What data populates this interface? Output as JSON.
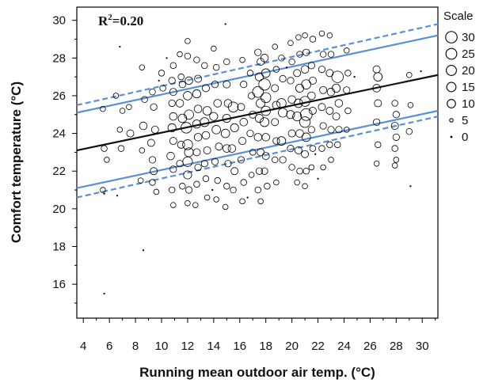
{
  "chart_data": {
    "type": "scatter",
    "title": "",
    "xlabel": "Running mean outdoor air temp. (°C)",
    "ylabel": "Comfort temperature (°C)",
    "xlim": [
      3.5,
      31.2
    ],
    "ylim": [
      14.2,
      30.7
    ],
    "xticks": [
      4,
      6,
      8,
      10,
      12,
      14,
      16,
      18,
      20,
      22,
      24,
      26,
      28,
      30
    ],
    "yticks": [
      16,
      18,
      20,
      22,
      24,
      26,
      28,
      30
    ],
    "annotation": {
      "base": "R",
      "sup": "2",
      "rest": "=0.20"
    },
    "grid": false,
    "legend": {
      "title": "Scale",
      "position": "right",
      "entries": [
        {
          "label": "30",
          "size": 30
        },
        {
          "label": "25",
          "size": 25
        },
        {
          "label": "20",
          "size": 20
        },
        {
          "label": "15",
          "size": 15
        },
        {
          "label": "10",
          "size": 10
        },
        {
          "label": "5",
          "size": 5
        },
        {
          "label": "0",
          "size": 0
        }
      ]
    },
    "lines": [
      {
        "role": "regression",
        "color": "#111111",
        "dash": false,
        "x": [
          3.5,
          31.2
        ],
        "y": [
          23.1,
          27.1
        ]
      },
      {
        "role": "upper-band",
        "color": "#5b8fd6",
        "dash": false,
        "x": [
          3.5,
          31.2
        ],
        "y": [
          25.1,
          29.2
        ]
      },
      {
        "role": "lower-band",
        "color": "#5b8fd6",
        "dash": false,
        "x": [
          3.5,
          31.2
        ],
        "y": [
          21.1,
          25.2
        ]
      },
      {
        "role": "upper-outer",
        "color": "#5b8fd6",
        "dash": true,
        "x": [
          3.5,
          31.2
        ],
        "y": [
          25.5,
          29.8
        ]
      },
      {
        "role": "lower-outer",
        "color": "#5b8fd6",
        "dash": true,
        "x": [
          3.5,
          31.2
        ],
        "y": [
          20.6,
          24.9
        ]
      }
    ],
    "points": [
      {
        "x": 5.5,
        "y": 25.3,
        "s": 2
      },
      {
        "x": 5.6,
        "y": 23.2,
        "s": 3
      },
      {
        "x": 5.8,
        "y": 22.6,
        "s": 2
      },
      {
        "x": 5.5,
        "y": 21.0,
        "s": 2
      },
      {
        "x": 5.6,
        "y": 20.8,
        "s": 0
      },
      {
        "x": 5.6,
        "y": 15.5,
        "s": 0
      },
      {
        "x": 6.8,
        "y": 28.6,
        "s": 0
      },
      {
        "x": 6.5,
        "y": 26.0,
        "s": 2
      },
      {
        "x": 7.0,
        "y": 25.2,
        "s": 2
      },
      {
        "x": 6.8,
        "y": 24.2,
        "s": 2
      },
      {
        "x": 6.9,
        "y": 23.2,
        "s": 3
      },
      {
        "x": 6.6,
        "y": 20.7,
        "s": 0
      },
      {
        "x": 7.5,
        "y": 25.4,
        "s": 2
      },
      {
        "x": 7.6,
        "y": 24.0,
        "s": 5
      },
      {
        "x": 8.5,
        "y": 27.5,
        "s": 2
      },
      {
        "x": 8.7,
        "y": 25.8,
        "s": 3
      },
      {
        "x": 8.6,
        "y": 24.4,
        "s": 6
      },
      {
        "x": 8.5,
        "y": 23.1,
        "s": 2
      },
      {
        "x": 8.4,
        "y": 21.5,
        "s": 2
      },
      {
        "x": 8.6,
        "y": 17.8,
        "s": 0
      },
      {
        "x": 9.3,
        "y": 26.2,
        "s": 3
      },
      {
        "x": 9.4,
        "y": 25.4,
        "s": 4
      },
      {
        "x": 9.5,
        "y": 24.2,
        "s": 5
      },
      {
        "x": 9.2,
        "y": 23.5,
        "s": 5
      },
      {
        "x": 9.3,
        "y": 22.6,
        "s": 4
      },
      {
        "x": 9.4,
        "y": 22.0,
        "s": 5
      },
      {
        "x": 9.3,
        "y": 21.4,
        "s": 3
      },
      {
        "x": 9.6,
        "y": 20.9,
        "s": 2
      },
      {
        "x": 10.0,
        "y": 27.2,
        "s": 3
      },
      {
        "x": 10.1,
        "y": 26.4,
        "s": 3
      },
      {
        "x": 10.9,
        "y": 27.6,
        "s": 3
      },
      {
        "x": 10.8,
        "y": 26.8,
        "s": 4
      },
      {
        "x": 10.9,
        "y": 26.2,
        "s": 5
      },
      {
        "x": 10.8,
        "y": 25.6,
        "s": 4
      },
      {
        "x": 10.9,
        "y": 24.9,
        "s": 6
      },
      {
        "x": 10.8,
        "y": 24.3,
        "s": 7
      },
      {
        "x": 10.9,
        "y": 23.6,
        "s": 5
      },
      {
        "x": 10.7,
        "y": 22.8,
        "s": 6
      },
      {
        "x": 10.9,
        "y": 22.1,
        "s": 4
      },
      {
        "x": 10.8,
        "y": 21.0,
        "s": 3
      },
      {
        "x": 10.9,
        "y": 20.2,
        "s": 2
      },
      {
        "x": 11.4,
        "y": 28.2,
        "s": 2
      },
      {
        "x": 11.5,
        "y": 27.0,
        "s": 3
      },
      {
        "x": 11.6,
        "y": 26.6,
        "s": 4
      },
      {
        "x": 11.4,
        "y": 25.6,
        "s": 6
      },
      {
        "x": 11.6,
        "y": 24.8,
        "s": 8
      },
      {
        "x": 11.5,
        "y": 23.4,
        "s": 5
      },
      {
        "x": 11.4,
        "y": 22.4,
        "s": 4
      },
      {
        "x": 11.6,
        "y": 21.2,
        "s": 3
      },
      {
        "x": 12.0,
        "y": 28.9,
        "s": 2
      },
      {
        "x": 12.0,
        "y": 28.1,
        "s": 3
      },
      {
        "x": 12.1,
        "y": 26.8,
        "s": 6
      },
      {
        "x": 12.0,
        "y": 26.0,
        "s": 8
      },
      {
        "x": 12.1,
        "y": 25.0,
        "s": 10
      },
      {
        "x": 11.9,
        "y": 24.3,
        "s": 14
      },
      {
        "x": 12.0,
        "y": 23.4,
        "s": 12
      },
      {
        "x": 12.1,
        "y": 23.0,
        "s": 9
      },
      {
        "x": 12.0,
        "y": 22.5,
        "s": 11
      },
      {
        "x": 12.0,
        "y": 21.8,
        "s": 7
      },
      {
        "x": 12.1,
        "y": 21.0,
        "s": 4
      },
      {
        "x": 12.0,
        "y": 20.3,
        "s": 2
      },
      {
        "x": 12.7,
        "y": 27.9,
        "s": 3
      },
      {
        "x": 12.8,
        "y": 26.9,
        "s": 5
      },
      {
        "x": 12.7,
        "y": 26.1,
        "s": 7
      },
      {
        "x": 12.8,
        "y": 25.3,
        "s": 6
      },
      {
        "x": 12.7,
        "y": 24.5,
        "s": 7
      },
      {
        "x": 12.8,
        "y": 23.8,
        "s": 6
      },
      {
        "x": 12.7,
        "y": 23.0,
        "s": 5
      },
      {
        "x": 12.8,
        "y": 22.2,
        "s": 4
      },
      {
        "x": 12.7,
        "y": 21.3,
        "s": 3
      },
      {
        "x": 12.6,
        "y": 20.2,
        "s": 2
      },
      {
        "x": 13.3,
        "y": 27.6,
        "s": 3
      },
      {
        "x": 13.4,
        "y": 26.4,
        "s": 5
      },
      {
        "x": 13.5,
        "y": 25.2,
        "s": 8
      },
      {
        "x": 13.3,
        "y": 24.6,
        "s": 9
      },
      {
        "x": 13.4,
        "y": 23.9,
        "s": 6
      },
      {
        "x": 13.5,
        "y": 23.1,
        "s": 5
      },
      {
        "x": 13.3,
        "y": 22.4,
        "s": 4
      },
      {
        "x": 13.4,
        "y": 21.6,
        "s": 3
      },
      {
        "x": 13.5,
        "y": 20.6,
        "s": 2
      },
      {
        "x": 14.0,
        "y": 28.5,
        "s": 2
      },
      {
        "x": 14.2,
        "y": 27.5,
        "s": 3
      },
      {
        "x": 14.1,
        "y": 26.6,
        "s": 4
      },
      {
        "x": 14.3,
        "y": 25.6,
        "s": 6
      },
      {
        "x": 14.0,
        "y": 24.9,
        "s": 7
      },
      {
        "x": 14.2,
        "y": 24.2,
        "s": 8
      },
      {
        "x": 14.4,
        "y": 23.3,
        "s": 5
      },
      {
        "x": 14.1,
        "y": 22.5,
        "s": 4
      },
      {
        "x": 14.3,
        "y": 21.5,
        "s": 3
      },
      {
        "x": 14.2,
        "y": 20.5,
        "s": 2
      },
      {
        "x": 14.9,
        "y": 29.8,
        "s": 0
      },
      {
        "x": 15.0,
        "y": 27.8,
        "s": 3
      },
      {
        "x": 15.0,
        "y": 26.6,
        "s": 5
      },
      {
        "x": 15.1,
        "y": 25.6,
        "s": 6
      },
      {
        "x": 15.0,
        "y": 24.8,
        "s": 7
      },
      {
        "x": 14.9,
        "y": 24.0,
        "s": 8
      },
      {
        "x": 15.0,
        "y": 23.2,
        "s": 6
      },
      {
        "x": 15.1,
        "y": 22.4,
        "s": 4
      },
      {
        "x": 15.0,
        "y": 21.2,
        "s": 3
      },
      {
        "x": 14.9,
        "y": 20.1,
        "s": 2
      },
      {
        "x": 15.5,
        "y": 25.4,
        "s": 12
      },
      {
        "x": 15.6,
        "y": 24.3,
        "s": 7
      },
      {
        "x": 15.4,
        "y": 23.2,
        "s": 6
      },
      {
        "x": 15.6,
        "y": 22.0,
        "s": 5
      },
      {
        "x": 15.5,
        "y": 21.0,
        "s": 3
      },
      {
        "x": 16.2,
        "y": 27.9,
        "s": 2
      },
      {
        "x": 16.3,
        "y": 26.6,
        "s": 4
      },
      {
        "x": 16.1,
        "y": 25.4,
        "s": 5
      },
      {
        "x": 16.3,
        "y": 24.6,
        "s": 6
      },
      {
        "x": 16.2,
        "y": 23.6,
        "s": 5
      },
      {
        "x": 16.1,
        "y": 22.6,
        "s": 4
      },
      {
        "x": 16.3,
        "y": 21.4,
        "s": 3
      },
      {
        "x": 16.2,
        "y": 20.4,
        "s": 2
      },
      {
        "x": 16.8,
        "y": 27.2,
        "s": 3
      },
      {
        "x": 16.9,
        "y": 26.0,
        "s": 4
      },
      {
        "x": 17.0,
        "y": 25.0,
        "s": 5
      },
      {
        "x": 16.8,
        "y": 24.0,
        "s": 4
      },
      {
        "x": 17.0,
        "y": 23.0,
        "s": 3
      },
      {
        "x": 16.9,
        "y": 21.8,
        "s": 2
      },
      {
        "x": 17.4,
        "y": 28.3,
        "s": 4
      },
      {
        "x": 17.6,
        "y": 27.8,
        "s": 5
      },
      {
        "x": 17.5,
        "y": 27.0,
        "s": 7
      },
      {
        "x": 17.4,
        "y": 26.2,
        "s": 15
      },
      {
        "x": 17.6,
        "y": 25.6,
        "s": 9
      },
      {
        "x": 17.5,
        "y": 24.8,
        "s": 7
      },
      {
        "x": 17.4,
        "y": 23.8,
        "s": 6
      },
      {
        "x": 17.6,
        "y": 23.0,
        "s": 5
      },
      {
        "x": 17.5,
        "y": 22.0,
        "s": 4
      },
      {
        "x": 17.4,
        "y": 21.0,
        "s": 3
      },
      {
        "x": 17.6,
        "y": 20.4,
        "s": 2
      },
      {
        "x": 17.9,
        "y": 28.0,
        "s": 6
      },
      {
        "x": 18.0,
        "y": 27.2,
        "s": 8
      },
      {
        "x": 17.9,
        "y": 26.6,
        "s": 17
      },
      {
        "x": 18.0,
        "y": 25.9,
        "s": 12
      },
      {
        "x": 18.0,
        "y": 25.2,
        "s": 10
      },
      {
        "x": 17.9,
        "y": 24.6,
        "s": 9
      },
      {
        "x": 18.0,
        "y": 23.8,
        "s": 6
      },
      {
        "x": 18.0,
        "y": 22.8,
        "s": 5
      },
      {
        "x": 17.9,
        "y": 22.0,
        "s": 4
      },
      {
        "x": 18.1,
        "y": 21.2,
        "s": 3
      },
      {
        "x": 18.7,
        "y": 28.6,
        "s": 2
      },
      {
        "x": 18.8,
        "y": 27.4,
        "s": 3
      },
      {
        "x": 18.7,
        "y": 26.4,
        "s": 5
      },
      {
        "x": 18.8,
        "y": 25.5,
        "s": 6
      },
      {
        "x": 18.7,
        "y": 24.6,
        "s": 5
      },
      {
        "x": 18.8,
        "y": 23.6,
        "s": 4
      },
      {
        "x": 18.7,
        "y": 22.6,
        "s": 3
      },
      {
        "x": 18.8,
        "y": 21.4,
        "s": 2
      },
      {
        "x": 19.2,
        "y": 28.0,
        "s": 3
      },
      {
        "x": 19.3,
        "y": 26.9,
        "s": 4
      },
      {
        "x": 19.2,
        "y": 25.6,
        "s": 10
      },
      {
        "x": 19.3,
        "y": 25.1,
        "s": 9
      },
      {
        "x": 19.2,
        "y": 23.6,
        "s": 8
      },
      {
        "x": 19.3,
        "y": 22.6,
        "s": 4
      },
      {
        "x": 19.9,
        "y": 28.8,
        "s": 2
      },
      {
        "x": 20.0,
        "y": 27.8,
        "s": 3
      },
      {
        "x": 19.9,
        "y": 26.8,
        "s": 4
      },
      {
        "x": 20.0,
        "y": 25.8,
        "s": 6
      },
      {
        "x": 19.9,
        "y": 25.0,
        "s": 7
      },
      {
        "x": 20.0,
        "y": 24.0,
        "s": 5
      },
      {
        "x": 19.9,
        "y": 23.2,
        "s": 4
      },
      {
        "x": 20.0,
        "y": 22.2,
        "s": 3
      },
      {
        "x": 20.5,
        "y": 29.1,
        "s": 2
      },
      {
        "x": 20.6,
        "y": 28.2,
        "s": 3
      },
      {
        "x": 20.4,
        "y": 27.2,
        "s": 5
      },
      {
        "x": 20.6,
        "y": 26.4,
        "s": 7
      },
      {
        "x": 20.5,
        "y": 25.6,
        "s": 8
      },
      {
        "x": 20.4,
        "y": 24.9,
        "s": 9
      },
      {
        "x": 20.6,
        "y": 24.0,
        "s": 6
      },
      {
        "x": 20.5,
        "y": 23.1,
        "s": 5
      },
      {
        "x": 20.6,
        "y": 22.0,
        "s": 3
      },
      {
        "x": 20.4,
        "y": 21.4,
        "s": 2
      },
      {
        "x": 21.0,
        "y": 29.2,
        "s": 2
      },
      {
        "x": 21.1,
        "y": 28.3,
        "s": 4
      },
      {
        "x": 21.0,
        "y": 27.4,
        "s": 6
      },
      {
        "x": 21.1,
        "y": 26.6,
        "s": 10
      },
      {
        "x": 21.0,
        "y": 25.7,
        "s": 12
      },
      {
        "x": 21.1,
        "y": 25.0,
        "s": 18
      },
      {
        "x": 21.0,
        "y": 24.6,
        "s": 14
      },
      {
        "x": 21.1,
        "y": 23.8,
        "s": 8
      },
      {
        "x": 21.0,
        "y": 22.9,
        "s": 5
      },
      {
        "x": 21.1,
        "y": 22.0,
        "s": 3
      },
      {
        "x": 21.0,
        "y": 21.2,
        "s": 2
      },
      {
        "x": 21.6,
        "y": 29.0,
        "s": 3
      },
      {
        "x": 21.5,
        "y": 27.6,
        "s": 4
      },
      {
        "x": 21.6,
        "y": 26.8,
        "s": 5
      },
      {
        "x": 21.5,
        "y": 26.0,
        "s": 6
      },
      {
        "x": 21.6,
        "y": 25.2,
        "s": 5
      },
      {
        "x": 21.5,
        "y": 24.2,
        "s": 4
      },
      {
        "x": 21.6,
        "y": 23.2,
        "s": 3
      },
      {
        "x": 21.5,
        "y": 22.2,
        "s": 2
      },
      {
        "x": 22.3,
        "y": 29.3,
        "s": 2
      },
      {
        "x": 22.4,
        "y": 28.2,
        "s": 3
      },
      {
        "x": 22.3,
        "y": 27.4,
        "s": 4
      },
      {
        "x": 22.4,
        "y": 26.3,
        "s": 5
      },
      {
        "x": 22.3,
        "y": 25.4,
        "s": 5
      },
      {
        "x": 22.4,
        "y": 24.4,
        "s": 4
      },
      {
        "x": 22.3,
        "y": 23.2,
        "s": 3
      },
      {
        "x": 22.4,
        "y": 22.2,
        "s": 2
      },
      {
        "x": 22.9,
        "y": 29.2,
        "s": 2
      },
      {
        "x": 23.0,
        "y": 28.2,
        "s": 3
      },
      {
        "x": 22.9,
        "y": 27.2,
        "s": 5
      },
      {
        "x": 23.0,
        "y": 26.2,
        "s": 6
      },
      {
        "x": 22.9,
        "y": 25.2,
        "s": 5
      },
      {
        "x": 23.0,
        "y": 24.2,
        "s": 4
      },
      {
        "x": 22.9,
        "y": 23.4,
        "s": 3
      },
      {
        "x": 23.0,
        "y": 22.6,
        "s": 2
      },
      {
        "x": 23.5,
        "y": 27.0,
        "s": 17
      },
      {
        "x": 23.4,
        "y": 26.4,
        "s": 7
      },
      {
        "x": 23.6,
        "y": 25.6,
        "s": 6
      },
      {
        "x": 23.4,
        "y": 24.9,
        "s": 5
      },
      {
        "x": 23.6,
        "y": 24.2,
        "s": 4
      },
      {
        "x": 23.5,
        "y": 23.4,
        "s": 3
      },
      {
        "x": 24.2,
        "y": 28.4,
        "s": 2
      },
      {
        "x": 24.3,
        "y": 27.2,
        "s": 3
      },
      {
        "x": 24.2,
        "y": 26.3,
        "s": 4
      },
      {
        "x": 24.3,
        "y": 25.2,
        "s": 3
      },
      {
        "x": 24.2,
        "y": 24.2,
        "s": 2
      },
      {
        "x": 26.5,
        "y": 27.4,
        "s": 5
      },
      {
        "x": 26.6,
        "y": 27.0,
        "s": 8
      },
      {
        "x": 26.5,
        "y": 26.4,
        "s": 6
      },
      {
        "x": 26.6,
        "y": 25.6,
        "s": 5
      },
      {
        "x": 26.5,
        "y": 24.6,
        "s": 4
      },
      {
        "x": 26.6,
        "y": 23.4,
        "s": 3
      },
      {
        "x": 26.5,
        "y": 22.4,
        "s": 2
      },
      {
        "x": 27.9,
        "y": 25.6,
        "s": 3
      },
      {
        "x": 28.0,
        "y": 25.0,
        "s": 4
      },
      {
        "x": 27.9,
        "y": 24.4,
        "s": 5
      },
      {
        "x": 28.0,
        "y": 23.8,
        "s": 4
      },
      {
        "x": 27.9,
        "y": 23.2,
        "s": 3
      },
      {
        "x": 28.0,
        "y": 22.6,
        "s": 2
      },
      {
        "x": 27.9,
        "y": 22.3,
        "s": 2
      },
      {
        "x": 29.0,
        "y": 27.1,
        "s": 2
      },
      {
        "x": 29.1,
        "y": 25.5,
        "s": 2
      },
      {
        "x": 29.0,
        "y": 24.1,
        "s": 3
      },
      {
        "x": 29.1,
        "y": 21.2,
        "s": 0
      },
      {
        "x": 29.9,
        "y": 27.3,
        "s": 0
      },
      {
        "x": 10.4,
        "y": 28.0,
        "s": 0
      },
      {
        "x": 13.9,
        "y": 21.0,
        "s": 0
      },
      {
        "x": 16.6,
        "y": 20.6,
        "s": 0
      },
      {
        "x": 19.6,
        "y": 27.5,
        "s": 0
      },
      {
        "x": 21.8,
        "y": 22.9,
        "s": 0
      },
      {
        "x": 24.8,
        "y": 27.0,
        "s": 0
      },
      {
        "x": 9.8,
        "y": 26.8,
        "s": 0
      },
      {
        "x": 22.0,
        "y": 21.6,
        "s": 0
      }
    ]
  }
}
